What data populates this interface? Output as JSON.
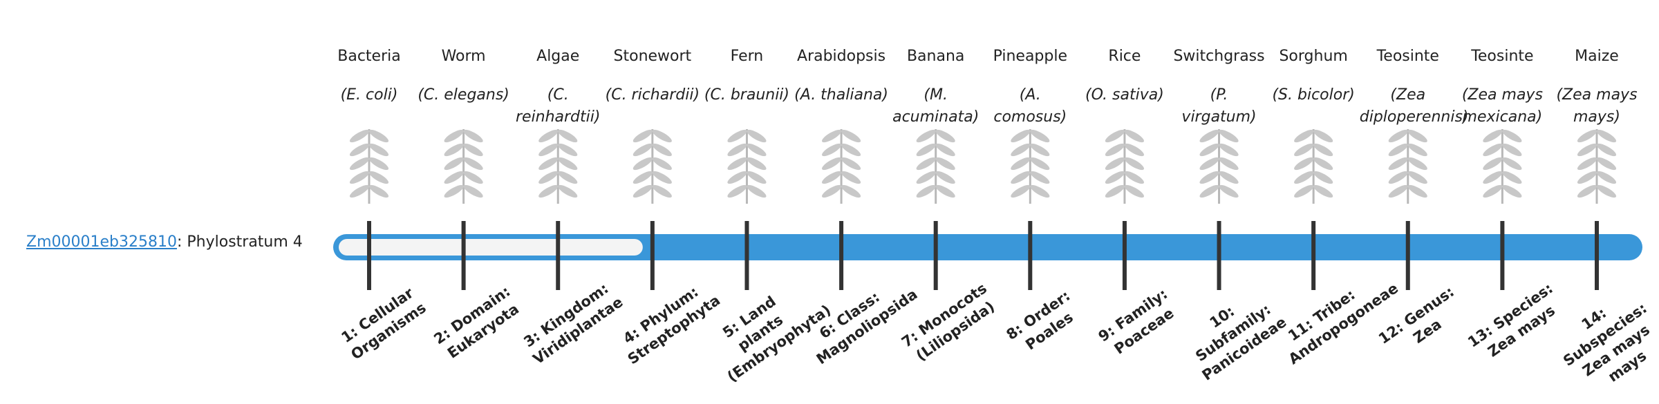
{
  "gene": {
    "id": "Zm00001eb325810",
    "label": ": Phylostratum 4",
    "phylostratum": 4
  },
  "organisms": [
    {
      "name": "Bacteria",
      "latin": "(E. coli)",
      "stratum": "1: Cellular Organisms"
    },
    {
      "name": "Worm",
      "latin": "(C. elegans)",
      "stratum": "2: Domain: Eukaryota"
    },
    {
      "name": "Algae",
      "latin": "(C. reinhardtii)",
      "stratum": "3: Kingdom: Viridiplantae"
    },
    {
      "name": "Stonewort",
      "latin": "(C. richardii)",
      "stratum": "4: Phylum: Streptophyta"
    },
    {
      "name": "Fern",
      "latin": "(C. braunii)",
      "stratum": "5: Land plants (Embryophyta)"
    },
    {
      "name": "Arabidopsis",
      "latin": "(A. thaliana)",
      "stratum": "6: Class: Magnoliopsida"
    },
    {
      "name": "Banana",
      "latin": "(M. acuminata)",
      "stratum": "7: Monocots (Liliopsida)"
    },
    {
      "name": "Pineapple",
      "latin": "(A. comosus)",
      "stratum": "8: Order: Poales"
    },
    {
      "name": "Rice",
      "latin": "(O. sativa)",
      "stratum": "9: Family: Poaceae"
    },
    {
      "name": "Switchgrass",
      "latin": "(P. virgatum)",
      "stratum": "10: Subfamily: Panicoideae"
    },
    {
      "name": "Sorghum",
      "latin": "(S. bicolor)",
      "stratum": "11: Tribe: Andropogoneae"
    },
    {
      "name": "Teosinte",
      "latin": "(Zea diploperennis)",
      "stratum": "12: Genus: Zea"
    },
    {
      "name": "Teosinte",
      "latin": "(Zea mays mexicana)",
      "stratum": "13: Species: Zea mays"
    },
    {
      "name": "Maize",
      "latin": "(Zea mays mays)",
      "stratum": "14: Subspecies: Zea mays mays"
    }
  ]
}
